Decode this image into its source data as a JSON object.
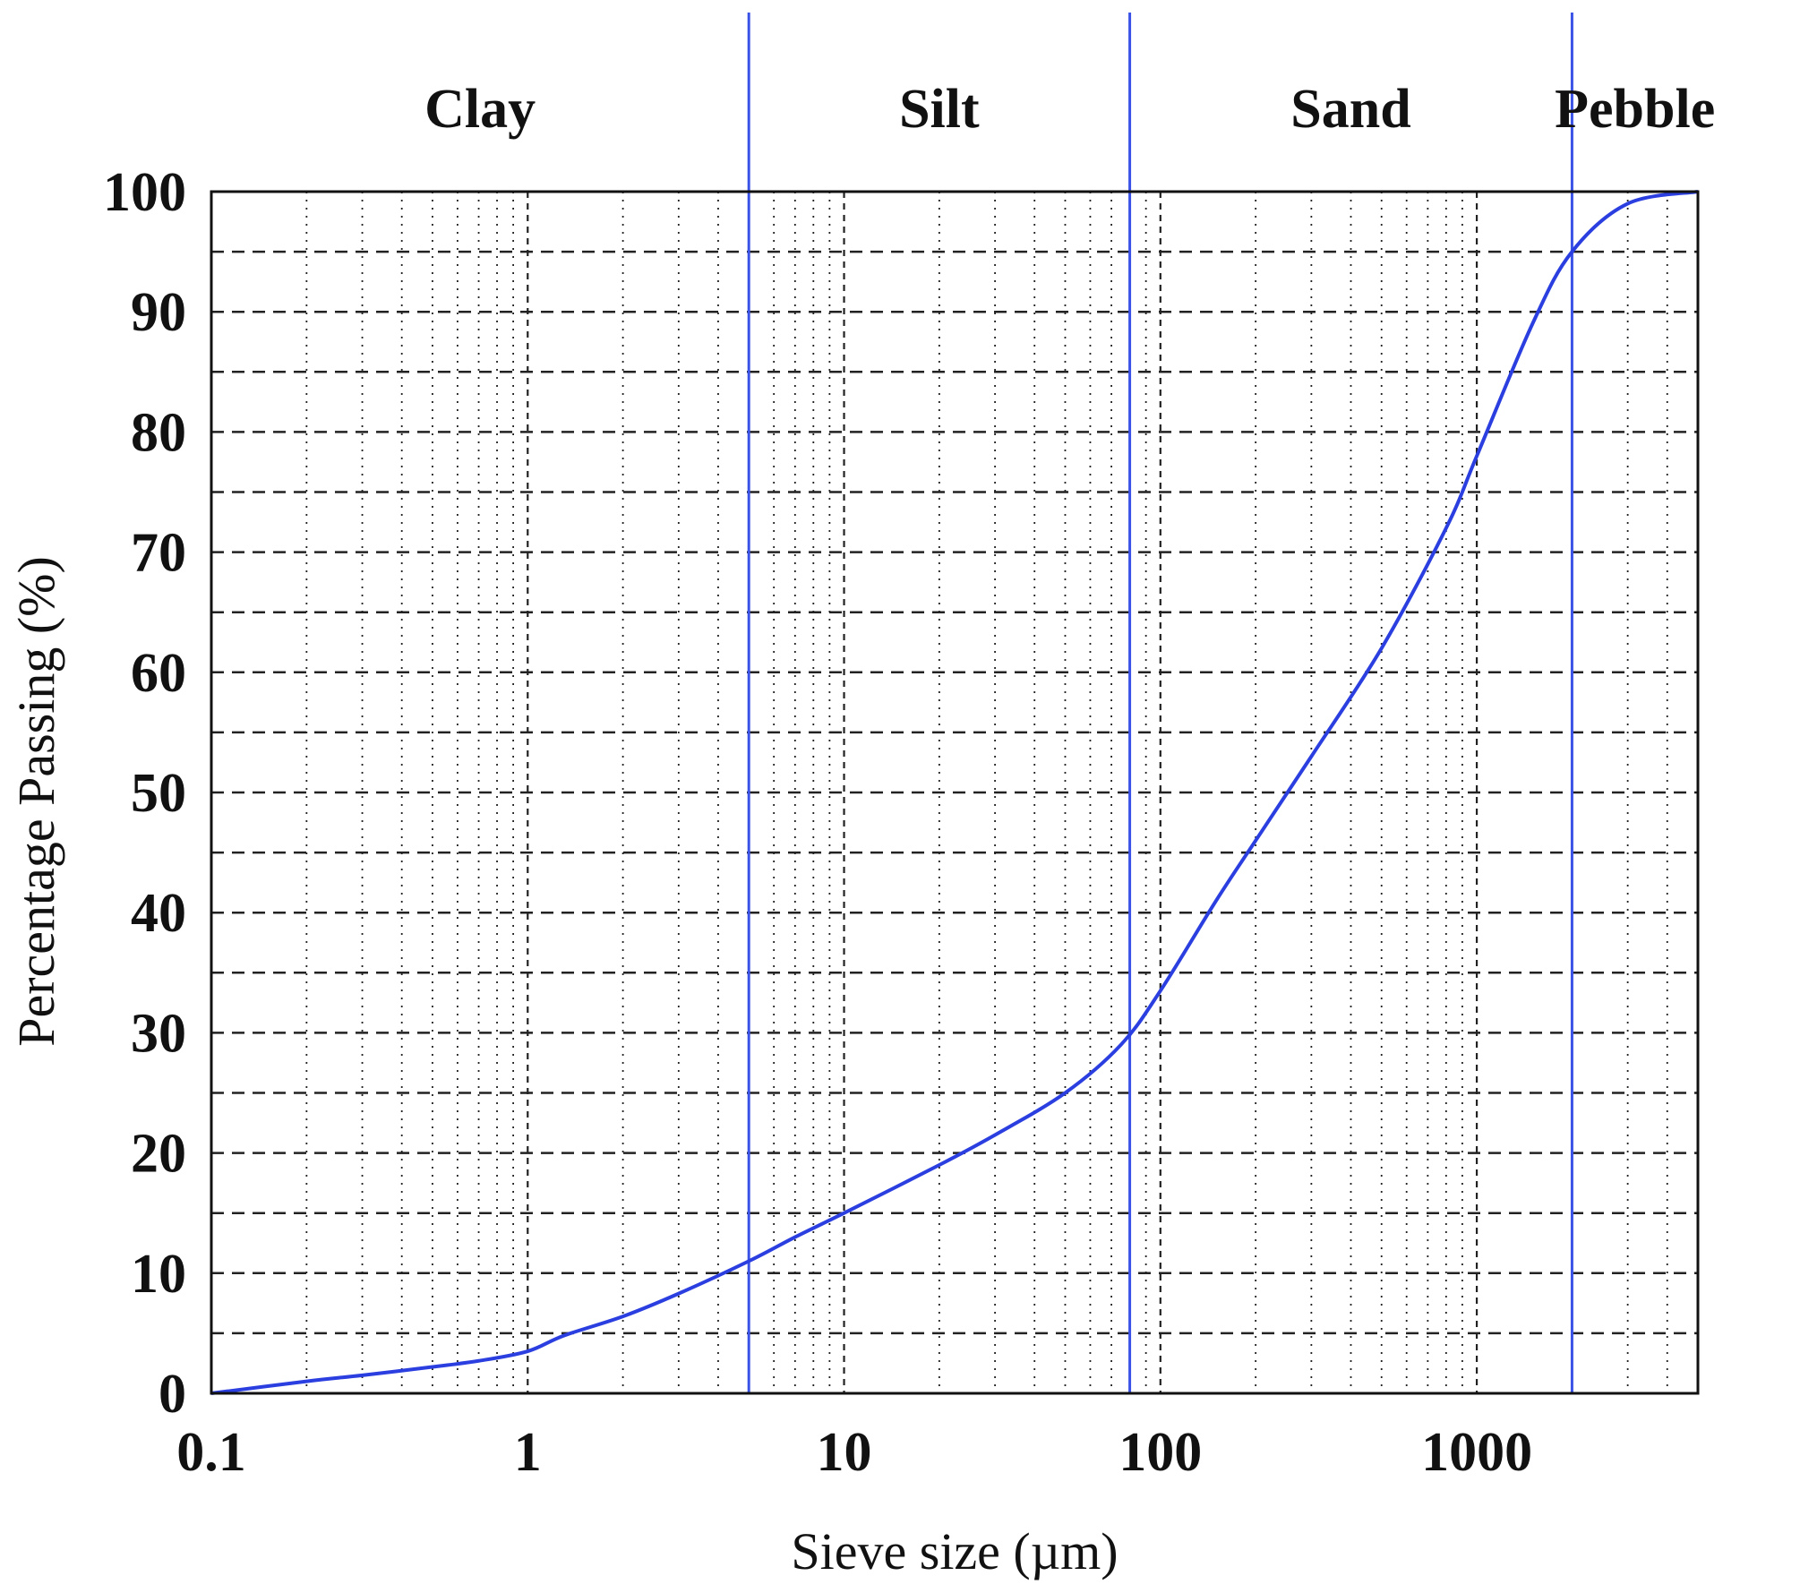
{
  "chart_data": {
    "type": "line",
    "title": "",
    "xlabel": "Sieve size (µm)",
    "ylabel": "Percentage Passing (%)",
    "x_scale": "log",
    "xlim": [
      0.1,
      5000
    ],
    "ylim": [
      0,
      100
    ],
    "x_ticks": [
      0.1,
      1,
      10,
      100,
      1000
    ],
    "x_tick_labels": [
      "0.1",
      "1",
      "10",
      "100",
      "1000"
    ],
    "y_ticks": [
      0,
      10,
      20,
      30,
      40,
      50,
      60,
      70,
      80,
      90,
      100
    ],
    "y_tick_labels": [
      "0",
      "10",
      "20",
      "30",
      "40",
      "50",
      "60",
      "70",
      "80",
      "90",
      "100"
    ],
    "grid": true,
    "series": [
      {
        "x": [
          0.1,
          0.2,
          0.3,
          0.5,
          0.7,
          1,
          1.3,
          2,
          3,
          5,
          7,
          10,
          20,
          30,
          50,
          75,
          100,
          150,
          200,
          300,
          500,
          800,
          1000,
          1500,
          2000,
          3000,
          5000
        ],
        "y": [
          0,
          1,
          1.5,
          2.2,
          2.7,
          3.5,
          4.8,
          6.4,
          8.3,
          11,
          13,
          15,
          19,
          21.5,
          25,
          29,
          33.5,
          41,
          46,
          53,
          62,
          72,
          78,
          89,
          95,
          99,
          100
        ]
      }
    ],
    "boundaries": [
      {
        "x": 5,
        "label": "Clay"
      },
      {
        "x": 80,
        "label": "Silt"
      },
      {
        "x": 2000,
        "label": "Sand"
      }
    ],
    "zones": [
      {
        "label": "Clay",
        "x_from": 0.1,
        "x_to": 5
      },
      {
        "label": "Silt",
        "x_from": 5,
        "x_to": 80
      },
      {
        "label": "Sand",
        "x_from": 80,
        "x_to": 2000
      },
      {
        "label": "Pebble",
        "x_from": 2000,
        "x_to": 5000
      }
    ],
    "colors": {
      "curve": "#2b3fe0",
      "boundary": "#3a52e6",
      "grid": "#222222",
      "axis": "#111111"
    }
  }
}
